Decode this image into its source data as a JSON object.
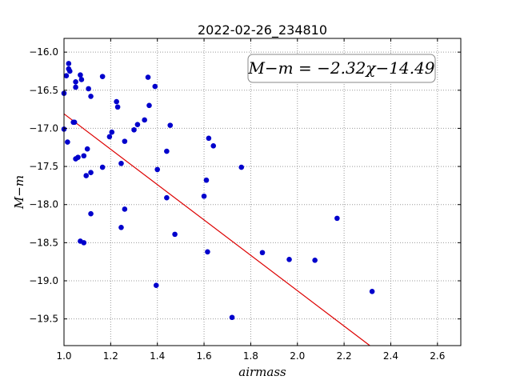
{
  "chart_data": {
    "type": "scatter",
    "title": "2022-02-26_234810",
    "xlabel": "airmass",
    "ylabel": "M−m",
    "xlim": [
      1.0,
      2.7
    ],
    "ylim": [
      -19.85,
      -15.82
    ],
    "xticks": [
      1.0,
      1.2,
      1.4,
      1.6,
      1.8,
      2.0,
      2.2,
      2.4,
      2.6
    ],
    "xtick_labels": [
      "1.0",
      "1.2",
      "1.4",
      "1.6",
      "1.8",
      "2.0",
      "2.2",
      "2.4",
      "2.6"
    ],
    "yticks": [
      -16.0,
      -16.5,
      -17.0,
      -17.5,
      -18.0,
      -18.5,
      -19.0,
      -19.5
    ],
    "ytick_labels": [
      "−16.0",
      "−16.5",
      "−17.0",
      "−17.5",
      "−18.0",
      "−18.5",
      "−19.0",
      "−19.5"
    ],
    "grid": true,
    "annotation": "M−m = −2.32χ−14.49",
    "annotation_position": "top-right",
    "fit_line": {
      "slope": -2.32,
      "intercept": -14.49,
      "color": "#dd0000"
    },
    "point_color": "#0000cc",
    "points": [
      [
        1.0,
        -16.54
      ],
      [
        1.0,
        -17.01
      ],
      [
        1.01,
        -16.31
      ],
      [
        1.02,
        -16.15
      ],
      [
        1.02,
        -16.22
      ],
      [
        1.025,
        -16.25
      ],
      [
        1.015,
        -17.18
      ],
      [
        1.04,
        -16.92
      ],
      [
        1.045,
        -16.92
      ],
      [
        1.05,
        -16.39
      ],
      [
        1.05,
        -16.46
      ],
      [
        1.05,
        -17.4
      ],
      [
        1.06,
        -17.38
      ],
      [
        1.07,
        -16.3
      ],
      [
        1.075,
        -16.36
      ],
      [
        1.085,
        -17.36
      ],
      [
        1.07,
        -18.48
      ],
      [
        1.085,
        -18.5
      ],
      [
        1.095,
        -17.62
      ],
      [
        1.1,
        -17.27
      ],
      [
        1.105,
        -16.48
      ],
      [
        1.115,
        -16.58
      ],
      [
        1.115,
        -17.58
      ],
      [
        1.115,
        -18.12
      ],
      [
        1.165,
        -16.32
      ],
      [
        1.165,
        -17.51
      ],
      [
        1.195,
        -17.11
      ],
      [
        1.205,
        -17.05
      ],
      [
        1.225,
        -16.65
      ],
      [
        1.23,
        -16.72
      ],
      [
        1.245,
        -17.46
      ],
      [
        1.245,
        -18.3
      ],
      [
        1.26,
        -17.17
      ],
      [
        1.26,
        -18.06
      ],
      [
        1.3,
        -17.02
      ],
      [
        1.315,
        -16.95
      ],
      [
        1.345,
        -16.89
      ],
      [
        1.36,
        -16.33
      ],
      [
        1.365,
        -16.7
      ],
      [
        1.39,
        -16.45
      ],
      [
        1.395,
        -19.06
      ],
      [
        1.4,
        -17.54
      ],
      [
        1.44,
        -17.3
      ],
      [
        1.44,
        -17.91
      ],
      [
        1.455,
        -16.96
      ],
      [
        1.475,
        -18.39
      ],
      [
        1.6,
        -17.89
      ],
      [
        1.61,
        -17.68
      ],
      [
        1.615,
        -18.62
      ],
      [
        1.62,
        -17.13
      ],
      [
        1.64,
        -17.23
      ],
      [
        1.72,
        -19.48
      ],
      [
        1.76,
        -17.51
      ],
      [
        1.85,
        -18.63
      ],
      [
        1.965,
        -18.72
      ],
      [
        2.075,
        -18.73
      ],
      [
        2.17,
        -18.18
      ],
      [
        2.32,
        -19.14
      ]
    ]
  }
}
